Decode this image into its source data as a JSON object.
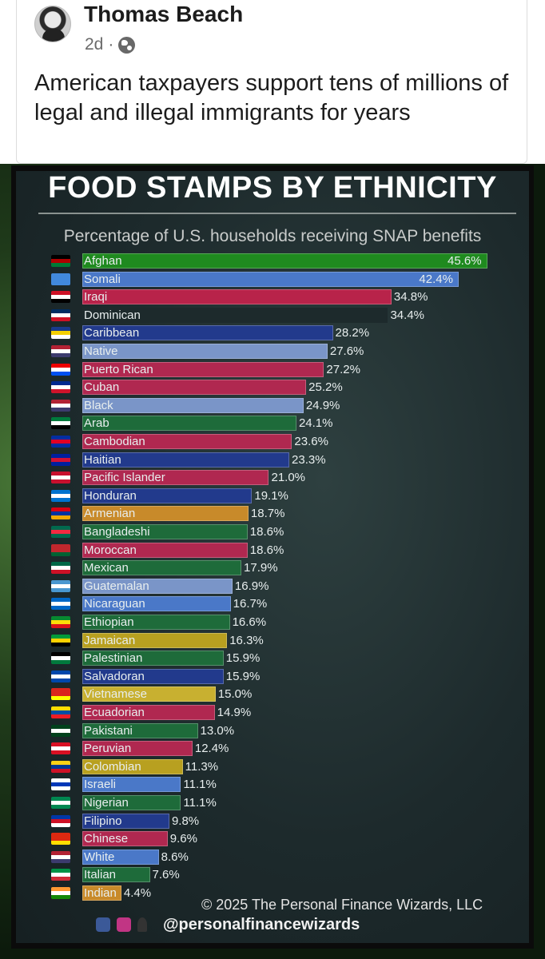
{
  "post": {
    "author": "Thomas Beach",
    "time": "2d",
    "separator": "·",
    "text": "American taxpayers support tens of millions of legal and illegal immigrants for years"
  },
  "chart_data": {
    "type": "bar",
    "orientation": "horizontal",
    "title": "FOOD STAMPS BY ETHNICITY",
    "subtitle": "Percentage of U.S. households receiving SNAP benefits",
    "unit": "%",
    "xlim": [
      0,
      50
    ],
    "categories": [
      "Afghan",
      "Somali",
      "Iraqi",
      "Dominican",
      "Caribbean",
      "Native",
      "Puerto Rican",
      "Cuban",
      "Black",
      "Arab",
      "Cambodian",
      "Haitian",
      "Pacific Islander",
      "Honduran",
      "Armenian",
      "Bangladeshi",
      "Moroccan",
      "Mexican",
      "Guatemalan",
      "Nicaraguan",
      "Ethiopian",
      "Jamaican",
      "Palestinian",
      "Salvadoran",
      "Vietnamese",
      "Ecuadorian",
      "Pakistani",
      "Peruvian",
      "Colombian",
      "Israeli",
      "Nigerian",
      "Filipino",
      "Chinese",
      "White",
      "Italian",
      "Indian"
    ],
    "values": [
      45.6,
      42.4,
      34.8,
      34.4,
      28.2,
      27.6,
      27.2,
      25.2,
      24.9,
      24.1,
      23.6,
      23.3,
      21.0,
      19.1,
      18.7,
      18.6,
      18.6,
      17.9,
      16.9,
      16.7,
      16.6,
      16.3,
      15.9,
      15.9,
      15.0,
      14.9,
      13.0,
      12.4,
      11.3,
      11.1,
      11.1,
      9.8,
      9.6,
      8.6,
      7.6,
      4.4
    ],
    "value_labels": [
      "45.6%",
      "42.4%",
      "34.8%",
      "34.4%",
      "28.2%",
      "27.6%",
      "27.2%",
      "25.2%",
      "24.9%",
      "24.1%",
      "23.6%",
      "23.3%",
      "21.0%",
      "19.1%",
      "18.7%",
      "18.6%",
      "18.6%",
      "17.9%",
      "16.9%",
      "16.7%",
      "16.6%",
      "16.3%",
      "15.9%",
      "15.9%",
      "15.0%",
      "14.9%",
      "13.0%",
      "12.4%",
      "11.3%",
      "11.1%",
      "11.1%",
      "9.8%",
      "9.6%",
      "8.6%",
      "7.6%",
      "4.4%"
    ],
    "bar_colors": [
      "#1f8a1f",
      "#4a78c8",
      "#b8234a",
      "#1d2a2c",
      "#223a8c",
      "#7a95c8",
      "#b02850",
      "#b02850",
      "#7a95c8",
      "#1e6b3a",
      "#b02850",
      "#223a8c",
      "#b02850",
      "#223a8c",
      "#c88a2a",
      "#1e6b3a",
      "#b02850",
      "#1e6b3a",
      "#7a95c8",
      "#4a78c8",
      "#1e6b3a",
      "#b8a020",
      "#1e6b3a",
      "#223a8c",
      "#c8b030",
      "#b02850",
      "#1e6b3a",
      "#b02850",
      "#b8a020",
      "#4a78c8",
      "#1e6b3a",
      "#223a8c",
      "#b02850",
      "#4a78c8",
      "#1e6b3a",
      "#c88a2a"
    ],
    "value_inside": [
      true,
      true,
      false,
      false,
      false,
      false,
      false,
      false,
      false,
      false,
      false,
      false,
      false,
      false,
      false,
      false,
      false,
      false,
      false,
      false,
      false,
      false,
      false,
      false,
      false,
      false,
      false,
      false,
      false,
      false,
      false,
      false,
      false,
      false,
      false,
      false
    ],
    "copyright": "© 2025 The Personal Finance Wizards, LLC",
    "social_handle": "@personalfinancewizards"
  },
  "flags": [
    [
      "#000000",
      "#b00000",
      "#007a36"
    ],
    [
      "#4189dd",
      "#4189dd",
      "#4189dd"
    ],
    [
      "#ce1126",
      "#ffffff",
      "#000000"
    ],
    [
      "#002d62",
      "#ffffff",
      "#ce1126"
    ],
    [
      "#1a3a8c",
      "#f4d000",
      "#ffffff"
    ],
    [
      "#b22234",
      "#ffffff",
      "#3c3b6e"
    ],
    [
      "#ed0000",
      "#ffffff",
      "#0050f0"
    ],
    [
      "#002a8f",
      "#ffffff",
      "#cf142b"
    ],
    [
      "#b22234",
      "#ffffff",
      "#3c3b6e"
    ],
    [
      "#007a3d",
      "#ffffff",
      "#000000"
    ],
    [
      "#032ea1",
      "#e00025",
      "#032ea1"
    ],
    [
      "#00209f",
      "#d21034",
      "#00209f"
    ],
    [
      "#c8102e",
      "#ffffff",
      "#c8102e"
    ],
    [
      "#0073cf",
      "#ffffff",
      "#0073cf"
    ],
    [
      "#d90012",
      "#0033a0",
      "#f2a800"
    ],
    [
      "#006a4e",
      "#f42a41",
      "#006a4e"
    ],
    [
      "#c1272d",
      "#c1272d",
      "#006233"
    ],
    [
      "#006847",
      "#ffffff",
      "#ce1126"
    ],
    [
      "#4997d0",
      "#ffffff",
      "#4997d0"
    ],
    [
      "#0067c6",
      "#ffffff",
      "#0067c6"
    ],
    [
      "#078930",
      "#fcdd09",
      "#da121a"
    ],
    [
      "#009b3a",
      "#fed100",
      "#000000"
    ],
    [
      "#000000",
      "#ffffff",
      "#007a3d"
    ],
    [
      "#0047ab",
      "#ffffff",
      "#0047ab"
    ],
    [
      "#da251d",
      "#da251d",
      "#ffff00"
    ],
    [
      "#ffdd00",
      "#034ea2",
      "#ed1c24"
    ],
    [
      "#01411c",
      "#ffffff",
      "#01411c"
    ],
    [
      "#d91023",
      "#ffffff",
      "#d91023"
    ],
    [
      "#fcd116",
      "#003893",
      "#ce1126"
    ],
    [
      "#ffffff",
      "#0038b8",
      "#ffffff"
    ],
    [
      "#008751",
      "#ffffff",
      "#008751"
    ],
    [
      "#0038a8",
      "#ce1126",
      "#ffffff"
    ],
    [
      "#de2910",
      "#de2910",
      "#ffde00"
    ],
    [
      "#b22234",
      "#ffffff",
      "#3c3b6e"
    ],
    [
      "#009246",
      "#ffffff",
      "#ce2b37"
    ],
    [
      "#ff9933",
      "#ffffff",
      "#138808"
    ]
  ]
}
